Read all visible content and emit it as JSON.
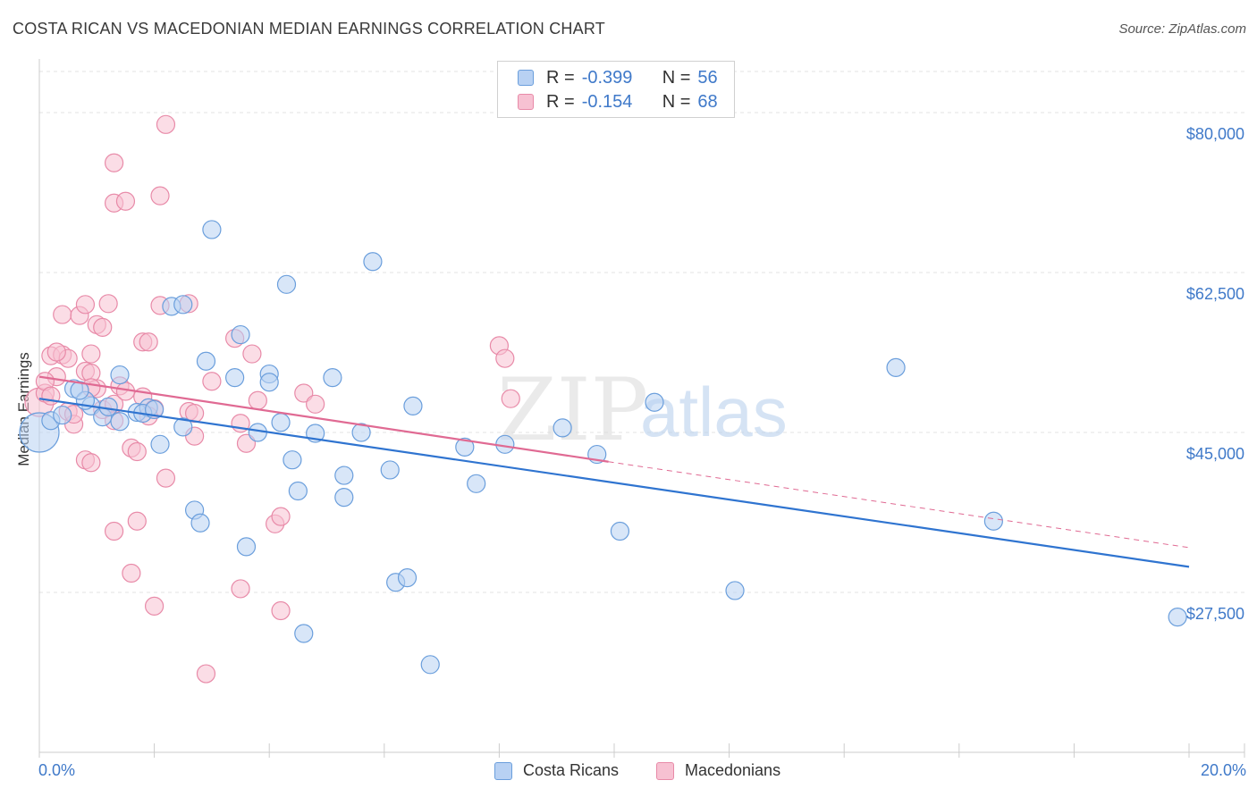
{
  "header": {
    "title": "COSTA RICAN VS MACEDONIAN MEDIAN EARNINGS CORRELATION CHART",
    "source": "Source: ZipAtlas.com"
  },
  "watermark": {
    "zip": "ZIP",
    "atlas": "atlas"
  },
  "legend": {
    "r_label": "R =",
    "n_label": "N =",
    "costa": {
      "r": "-0.399",
      "n": "56"
    },
    "macedonian": {
      "r": "-0.154",
      "n": "68"
    }
  },
  "colors": {
    "blue_fill": "#b8d1f3",
    "blue_stroke": "#6a9edc",
    "blue_line": "#2f74d0",
    "pink_fill": "#f7c1d2",
    "pink_stroke": "#e88aa8",
    "pink_line": "#e06a93",
    "tick_label": "#3f79c9",
    "grid": "#e3e3e3"
  },
  "chart_data": {
    "type": "scatter",
    "title": "COSTA RICAN VS MACEDONIAN MEDIAN EARNINGS CORRELATION CHART",
    "xlabel": "",
    "ylabel": "Median Earnings",
    "xlim": [
      0,
      20
    ],
    "ylim": [
      10000,
      84500
    ],
    "x_tick_labels": [
      "0.0%",
      "20.0%"
    ],
    "y_ticks": [
      {
        "value": 80000,
        "label": "$80,000"
      },
      {
        "value": 62500,
        "label": "$62,500"
      },
      {
        "value": 45000,
        "label": "$45,000"
      },
      {
        "value": 27500,
        "label": "$27,500"
      }
    ],
    "series": [
      {
        "name": "Costa Ricans",
        "color": "blue",
        "trend": {
          "x": [
            0,
            20
          ],
          "y": [
            48700,
            30300
          ],
          "dashed_extension": false
        },
        "points": [
          [
            0.0,
            45000,
            22
          ],
          [
            0.2,
            46300,
            10
          ],
          [
            0.6,
            49800,
            10
          ],
          [
            0.9,
            47900,
            10
          ],
          [
            0.4,
            46900,
            10
          ],
          [
            0.8,
            48500,
            10
          ],
          [
            1.1,
            46700,
            10
          ],
          [
            1.4,
            46200,
            10
          ],
          [
            1.4,
            51300,
            10
          ],
          [
            1.7,
            47200,
            10
          ],
          [
            1.9,
            47700,
            10
          ],
          [
            2.1,
            43700,
            10
          ],
          [
            2.3,
            58800,
            10
          ],
          [
            2.5,
            59000,
            10
          ],
          [
            2.5,
            45600,
            10
          ],
          [
            3.0,
            67200,
            10
          ],
          [
            2.9,
            52800,
            10
          ],
          [
            3.4,
            51000,
            10
          ],
          [
            3.5,
            55700,
            10
          ],
          [
            3.8,
            45000,
            10
          ],
          [
            4.0,
            51400,
            10
          ],
          [
            4.0,
            50500,
            10
          ],
          [
            4.2,
            46100,
            10
          ],
          [
            4.3,
            61200,
            10
          ],
          [
            4.4,
            42000,
            10
          ],
          [
            4.5,
            38600,
            10
          ],
          [
            4.6,
            23000,
            10
          ],
          [
            4.8,
            44900,
            10
          ],
          [
            5.1,
            51000,
            10
          ],
          [
            5.3,
            40300,
            10
          ],
          [
            5.3,
            37900,
            10
          ],
          [
            5.6,
            45000,
            10
          ],
          [
            5.8,
            63700,
            10
          ],
          [
            6.1,
            40900,
            10
          ],
          [
            6.2,
            28600,
            10
          ],
          [
            6.4,
            29100,
            10
          ],
          [
            6.5,
            47900,
            10
          ],
          [
            6.8,
            19600,
            10
          ],
          [
            7.4,
            43400,
            10
          ],
          [
            7.6,
            39400,
            10
          ],
          [
            8.1,
            43700,
            10
          ],
          [
            9.1,
            45500,
            10
          ],
          [
            9.7,
            42600,
            10
          ],
          [
            10.1,
            34200,
            10
          ],
          [
            10.7,
            48300,
            10
          ],
          [
            12.1,
            27700,
            10
          ],
          [
            14.9,
            52100,
            10
          ],
          [
            16.6,
            35300,
            10
          ],
          [
            19.8,
            24800,
            10
          ],
          [
            2.7,
            36500,
            10
          ],
          [
            2.8,
            35100,
            10
          ],
          [
            3.6,
            32500,
            10
          ],
          [
            1.8,
            47100,
            10
          ],
          [
            2.0,
            47500,
            10
          ],
          [
            1.2,
            47800,
            10
          ],
          [
            0.7,
            49600,
            10
          ]
        ]
      },
      {
        "name": "Macedonians",
        "color": "pink",
        "trend": {
          "x": [
            0,
            9.9,
            20
          ],
          "y": [
            51100,
            41800,
            32400
          ],
          "dashed_extension": true
        },
        "points": [
          [
            0.0,
            48300,
            16
          ],
          [
            0.1,
            49300,
            10
          ],
          [
            0.2,
            53400,
            10
          ],
          [
            0.4,
            53500,
            10
          ],
          [
            0.3,
            51100,
            10
          ],
          [
            0.5,
            47300,
            10
          ],
          [
            0.6,
            45900,
            10
          ],
          [
            0.4,
            57900,
            10
          ],
          [
            0.7,
            57800,
            10
          ],
          [
            0.8,
            51700,
            10
          ],
          [
            0.9,
            53600,
            10
          ],
          [
            0.9,
            51500,
            10
          ],
          [
            0.8,
            59000,
            10
          ],
          [
            1.0,
            56800,
            10
          ],
          [
            1.0,
            49800,
            10
          ],
          [
            1.1,
            56500,
            10
          ],
          [
            1.1,
            47500,
            10
          ],
          [
            1.2,
            59100,
            10
          ],
          [
            1.3,
            48100,
            10
          ],
          [
            1.3,
            46300,
            10
          ],
          [
            1.4,
            50100,
            10
          ],
          [
            1.5,
            49500,
            10
          ],
          [
            1.6,
            43300,
            10
          ],
          [
            1.7,
            42900,
            10
          ],
          [
            1.8,
            48900,
            10
          ],
          [
            1.8,
            54900,
            10
          ],
          [
            1.9,
            54900,
            10
          ],
          [
            2.0,
            47600,
            10
          ],
          [
            2.1,
            58900,
            10
          ],
          [
            2.2,
            40000,
            10
          ],
          [
            1.3,
            74500,
            10
          ],
          [
            1.3,
            70100,
            10
          ],
          [
            1.5,
            70300,
            10
          ],
          [
            2.1,
            70900,
            10
          ],
          [
            2.2,
            78700,
            10
          ],
          [
            2.6,
            59100,
            10
          ],
          [
            2.6,
            47300,
            10
          ],
          [
            2.7,
            44600,
            10
          ],
          [
            3.0,
            50600,
            10
          ],
          [
            3.4,
            55300,
            10
          ],
          [
            3.5,
            46000,
            10
          ],
          [
            3.6,
            43800,
            10
          ],
          [
            3.7,
            53600,
            10
          ],
          [
            3.8,
            48500,
            10
          ],
          [
            4.1,
            35000,
            10
          ],
          [
            4.2,
            35800,
            10
          ],
          [
            4.2,
            25500,
            10
          ],
          [
            3.5,
            27900,
            10
          ],
          [
            2.9,
            18600,
            10
          ],
          [
            2.0,
            26000,
            10
          ],
          [
            1.6,
            29600,
            10
          ],
          [
            1.3,
            34200,
            10
          ],
          [
            1.7,
            35300,
            10
          ],
          [
            0.8,
            42000,
            10
          ],
          [
            0.9,
            41700,
            10
          ],
          [
            0.6,
            47000,
            10
          ],
          [
            0.5,
            53100,
            10
          ],
          [
            0.3,
            53800,
            10
          ],
          [
            0.1,
            50600,
            10
          ],
          [
            0.2,
            49000,
            10
          ],
          [
            4.6,
            49300,
            10
          ],
          [
            4.8,
            48100,
            10
          ],
          [
            8.0,
            54500,
            10
          ],
          [
            8.1,
            53100,
            10
          ],
          [
            8.2,
            48700,
            10
          ],
          [
            0.9,
            49900,
            10
          ],
          [
            1.9,
            46800,
            10
          ],
          [
            2.7,
            47100,
            10
          ]
        ]
      }
    ]
  },
  "bottom_legend": {
    "costa": "Costa Ricans",
    "macedonian": "Macedonians"
  }
}
